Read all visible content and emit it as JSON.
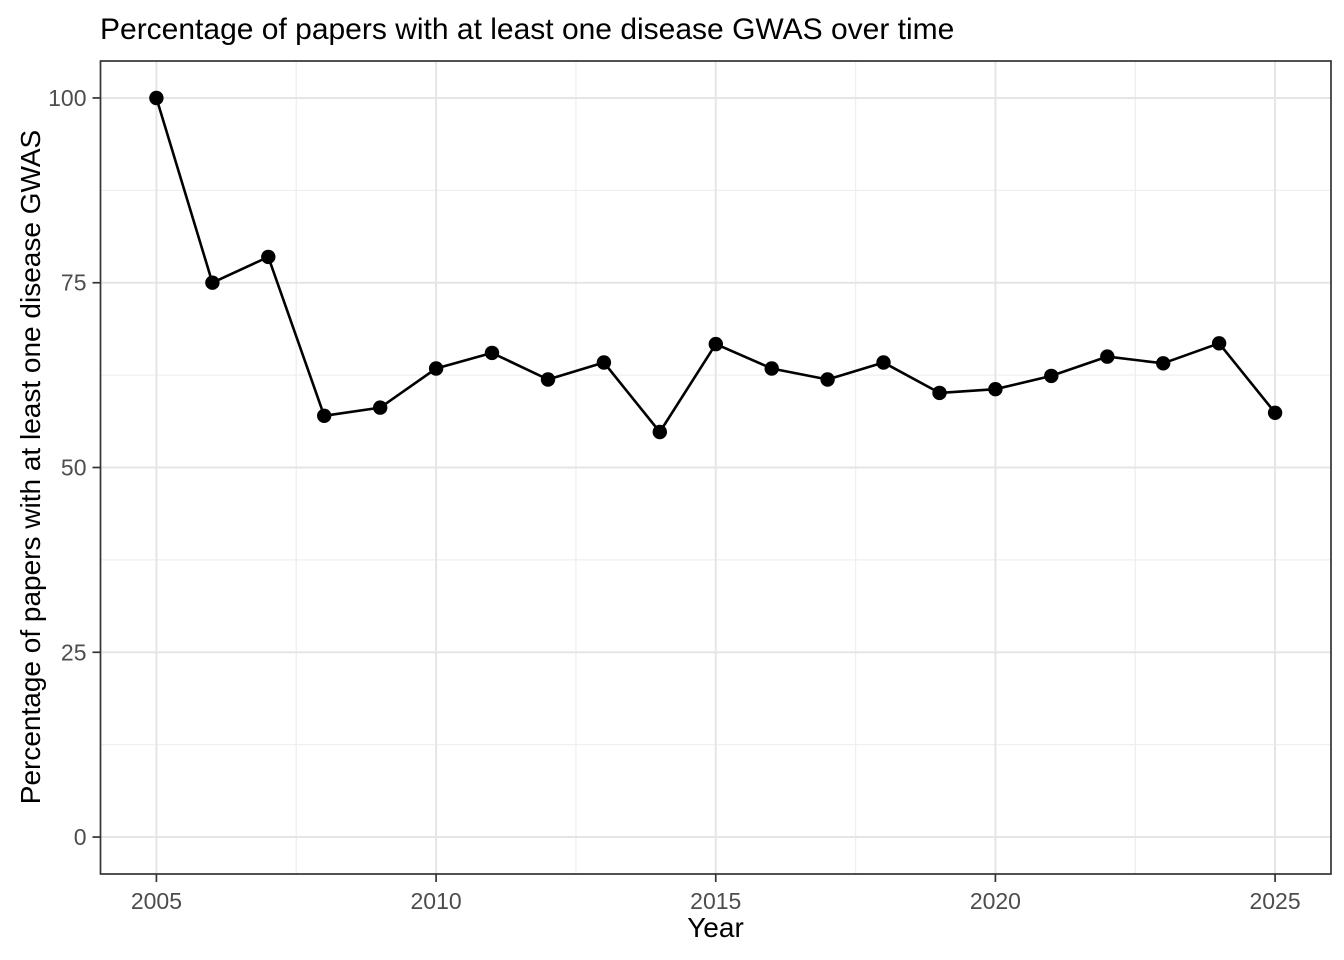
{
  "figure": {
    "title": "Percentage of papers with at least one disease GWAS over time",
    "x_axis_title": "Year",
    "y_axis_title": "Percentage of papers with at least one disease GWAS"
  },
  "chart_data": {
    "type": "line",
    "title": "Percentage of papers with at least one disease GWAS over time",
    "xlabel": "Year",
    "ylabel": "Percentage of papers with at least one disease GWAS",
    "x": [
      2005,
      2006,
      2007,
      2008,
      2009,
      2010,
      2011,
      2012,
      2013,
      2014,
      2015,
      2016,
      2017,
      2018,
      2019,
      2020,
      2021,
      2022,
      2023,
      2024,
      2025
    ],
    "series": [
      {
        "name": "percent_papers_with_disease_gwas",
        "values": [
          100,
          75,
          78.5,
          57,
          58.1,
          63.4,
          65.5,
          61.9,
          64.2,
          54.8,
          66.7,
          63.4,
          61.9,
          64.2,
          60.1,
          60.6,
          62.4,
          65,
          64.1,
          66.8,
          57.4
        ]
      }
    ],
    "xlim": [
      2004,
      2026
    ],
    "ylim": [
      -5,
      105
    ],
    "x_major_ticks": [
      2005,
      2010,
      2015,
      2020,
      2025
    ],
    "y_major_ticks": [
      0,
      25,
      50,
      75,
      100
    ],
    "x_minor_ticks": [
      2007.5,
      2012.5,
      2017.5,
      2022.5
    ],
    "y_minor_ticks": [
      12.5,
      37.5,
      62.5,
      87.5
    ],
    "grid": "major-and-minor",
    "legend_position": "none",
    "marker": "filled-circle",
    "style": {
      "background_color": "#ffffff",
      "line_color": "#000000",
      "point_color": "#000000",
      "grid_major_color": "#e5e5e5",
      "grid_minor_color": "#efefef",
      "panel_border_color": "#333333",
      "tick_color": "#333333",
      "tick_label_color": "#4d4d4d",
      "title_color": "#000000"
    }
  }
}
